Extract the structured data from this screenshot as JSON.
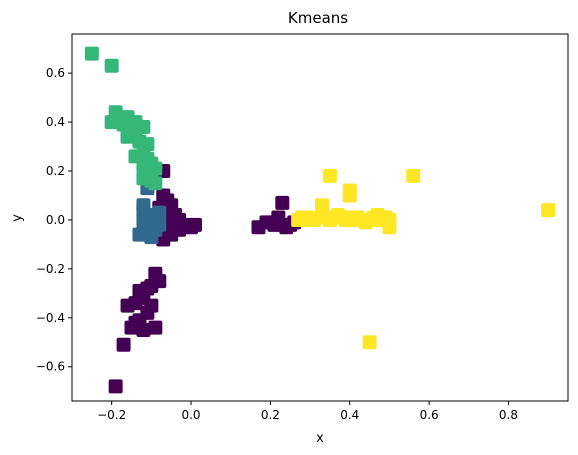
{
  "chart_data": {
    "type": "scatter",
    "title": "Kmeans",
    "xlabel": "x",
    "ylabel": "y",
    "xlim": [
      -0.3,
      0.95
    ],
    "ylim": [
      -0.74,
      0.76
    ],
    "xticks": [
      -0.2,
      0.0,
      0.2,
      0.4,
      0.6,
      0.8
    ],
    "xtick_labels": [
      "−0.2",
      "0.0",
      "0.2",
      "0.4",
      "0.6",
      "0.8"
    ],
    "yticks": [
      -0.6,
      -0.4,
      -0.2,
      0.0,
      0.2,
      0.4,
      0.6
    ],
    "ytick_labels": [
      "−0.6",
      "−0.4",
      "−0.2",
      "0.0",
      "0.2",
      "0.4",
      "0.6"
    ],
    "grid": false,
    "marker": "square",
    "series": [
      {
        "color": "#440154",
        "points": [
          [
            -0.07,
            0.2
          ],
          [
            -0.07,
            0.1
          ],
          [
            -0.06,
            0.08
          ],
          [
            -0.05,
            0.06
          ],
          [
            -0.08,
            0.05
          ],
          [
            -0.06,
            0.03
          ],
          [
            -0.04,
            0.02
          ],
          [
            -0.03,
            0.0
          ],
          [
            -0.05,
            -0.01
          ],
          [
            -0.02,
            -0.02
          ],
          [
            0.0,
            -0.03
          ],
          [
            0.01,
            -0.02
          ],
          [
            -0.07,
            -0.04
          ],
          [
            -0.09,
            -0.06
          ],
          [
            -0.07,
            -0.08
          ],
          [
            -0.05,
            -0.06
          ],
          [
            -0.03,
            -0.04
          ],
          [
            0.17,
            -0.03
          ],
          [
            0.19,
            -0.01
          ],
          [
            0.21,
            -0.02
          ],
          [
            0.23,
            0.07
          ],
          [
            0.22,
            0.01
          ],
          [
            0.25,
            -0.02
          ],
          [
            0.24,
            -0.03
          ],
          [
            0.26,
            -0.01
          ],
          [
            -0.09,
            -0.22
          ],
          [
            -0.08,
            -0.25
          ],
          [
            -0.1,
            -0.27
          ],
          [
            -0.11,
            -0.28
          ],
          [
            -0.13,
            -0.29
          ],
          [
            -0.12,
            -0.32
          ],
          [
            -0.1,
            -0.35
          ],
          [
            -0.14,
            -0.34
          ],
          [
            -0.16,
            -0.35
          ],
          [
            -0.11,
            -0.38
          ],
          [
            -0.13,
            -0.41
          ],
          [
            -0.15,
            -0.44
          ],
          [
            -0.12,
            -0.45
          ],
          [
            -0.09,
            -0.44
          ],
          [
            -0.14,
            -0.42
          ],
          [
            -0.17,
            -0.51
          ],
          [
            -0.19,
            -0.68
          ]
        ]
      },
      {
        "color": "#31688e",
        "points": [
          [
            -0.11,
            0.13
          ],
          [
            -0.12,
            0.06
          ],
          [
            -0.12,
            0.04
          ],
          [
            -0.11,
            0.02
          ],
          [
            -0.12,
            -0.0
          ],
          [
            -0.1,
            -0.01
          ],
          [
            -0.11,
            -0.03
          ],
          [
            -0.12,
            -0.05
          ],
          [
            -0.13,
            -0.06
          ],
          [
            -0.1,
            -0.07
          ],
          [
            -0.09,
            -0.04
          ],
          [
            -0.08,
            -0.02
          ],
          [
            -0.09,
            0.01
          ],
          [
            -0.08,
            0.03
          ]
        ]
      },
      {
        "color": "#35b779",
        "points": [
          [
            -0.25,
            0.68
          ],
          [
            -0.2,
            0.63
          ],
          [
            -0.19,
            0.44
          ],
          [
            -0.16,
            0.42
          ],
          [
            -0.2,
            0.4
          ],
          [
            -0.17,
            0.39
          ],
          [
            -0.14,
            0.4
          ],
          [
            -0.12,
            0.38
          ],
          [
            -0.14,
            0.35
          ],
          [
            -0.16,
            0.34
          ],
          [
            -0.13,
            0.32
          ],
          [
            -0.11,
            0.31
          ],
          [
            -0.12,
            0.28
          ],
          [
            -0.14,
            0.26
          ],
          [
            -0.11,
            0.25
          ],
          [
            -0.1,
            0.23
          ],
          [
            -0.12,
            0.22
          ],
          [
            -0.1,
            0.2
          ],
          [
            -0.09,
            0.21
          ],
          [
            -0.11,
            0.18
          ],
          [
            -0.1,
            0.16
          ],
          [
            -0.09,
            0.15
          ],
          [
            -0.12,
            0.17
          ]
        ]
      },
      {
        "color": "#fde725",
        "points": [
          [
            0.27,
            0.0
          ],
          [
            0.28,
            0.01
          ],
          [
            0.29,
            0.0
          ],
          [
            0.3,
            0.01
          ],
          [
            0.31,
            0.0
          ],
          [
            0.32,
            0.01
          ],
          [
            0.33,
            0.02
          ],
          [
            0.34,
            0.01
          ],
          [
            0.35,
            0.0
          ],
          [
            0.36,
            0.01
          ],
          [
            0.37,
            0.02
          ],
          [
            0.38,
            0.01
          ],
          [
            0.39,
            0.0
          ],
          [
            0.4,
            0.01
          ],
          [
            0.41,
            0.0
          ],
          [
            0.42,
            0.01
          ],
          [
            0.43,
            0.0
          ],
          [
            0.44,
            -0.01
          ],
          [
            0.45,
            0.0
          ],
          [
            0.46,
            0.01
          ],
          [
            0.47,
            0.02
          ],
          [
            0.48,
            0.0
          ],
          [
            0.49,
            0.01
          ],
          [
            0.5,
            0.0
          ],
          [
            0.5,
            -0.03
          ],
          [
            0.33,
            0.06
          ],
          [
            0.35,
            0.18
          ],
          [
            0.4,
            0.12
          ],
          [
            0.4,
            0.1
          ],
          [
            0.56,
            0.18
          ],
          [
            0.9,
            0.04
          ],
          [
            0.45,
            -0.5
          ]
        ]
      }
    ]
  }
}
